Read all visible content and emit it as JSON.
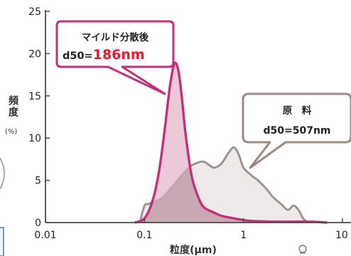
{
  "chart_data": {
    "type": "area",
    "x_scale": "log",
    "xlim": [
      0.01,
      10
    ],
    "ylim": [
      0,
      25
    ],
    "x_ticks": [
      0.01,
      0.1,
      1,
      10
    ],
    "x_tick_labels": [
      "0.01",
      "0.1",
      "1",
      "10"
    ],
    "y_ticks": [
      0,
      5,
      10,
      15,
      20,
      25
    ],
    "y_tick_labels": [
      "0",
      "5",
      "10",
      "15",
      "20",
      "25"
    ],
    "xlabel": "粒度(μm)",
    "ylabel": "頻度",
    "ylabel_unit": "(%)",
    "grid": false,
    "series": [
      {
        "name": "原　料",
        "color_fill": "#efeaea",
        "color_line": "#a09492",
        "x": [
          0.09,
          0.1,
          0.11,
          0.13,
          0.15,
          0.18,
          0.22,
          0.27,
          0.33,
          0.4,
          0.5,
          0.6,
          0.7,
          0.8,
          0.9,
          1.0,
          1.2,
          1.4,
          1.7,
          2.0,
          2.4,
          2.8,
          3.2,
          3.6,
          4.0,
          4.5
        ],
        "y": [
          0,
          2.0,
          2.2,
          2.6,
          3.0,
          4.0,
          5.2,
          6.4,
          7.0,
          7.2,
          6.5,
          7.0,
          8.2,
          8.9,
          8.0,
          6.5,
          5.6,
          5.0,
          4.0,
          3.0,
          2.2,
          1.5,
          2.0,
          1.5,
          0.5,
          0
        ]
      },
      {
        "name": "マイルド分散後",
        "color_fill": "#e8c0d2",
        "color_line": "#c3307a",
        "x": [
          0.08,
          0.1,
          0.12,
          0.14,
          0.16,
          0.18,
          0.2,
          0.22,
          0.24,
          0.26,
          0.3,
          0.35,
          0.4,
          0.5,
          0.6,
          0.8,
          1.0,
          1.2,
          1.5,
          2.0,
          2.5,
          3.0,
          5.0,
          7.0
        ],
        "y": [
          0,
          0.5,
          2.5,
          6,
          11,
          16,
          18.8,
          18.0,
          14.5,
          10.5,
          5.5,
          3.0,
          1.8,
          1.2,
          0.8,
          0.5,
          0.3,
          0.2,
          0.15,
          0.1,
          0.1,
          0.1,
          0.1,
          0
        ]
      }
    ]
  },
  "callouts": {
    "mild": {
      "title": "マイルド分散後",
      "prefix": "d50=",
      "value": "186nm"
    },
    "raw": {
      "title": "原　料",
      "text": "d50=507nm"
    }
  },
  "colors": {
    "axis": "#4a4a4a",
    "mild_accent": "#c3307a",
    "value_red": "#e8192c",
    "raw_border": "#9a8a86",
    "side_card_border": "#3b7fd1",
    "side_card_fill": "#f3f3f6"
  }
}
